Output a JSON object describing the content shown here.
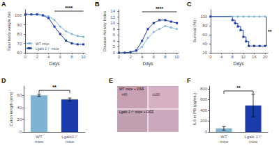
{
  "chart_data": [
    {
      "type": "line",
      "title": "A",
      "xlabel": "Days",
      "ylabel": "Total body weight (%)",
      "x": [
        0,
        1,
        2,
        3,
        4,
        5,
        6,
        7,
        8,
        9,
        10
      ],
      "series": [
        {
          "name": "WT mice",
          "color": "#7fb3d3",
          "marker": "circle",
          "values": [
            101,
            101,
            101,
            100,
            99,
            95,
            88,
            83,
            80,
            78,
            77
          ]
        },
        {
          "name": "Lgals 1⁻/⁻ mice",
          "color": "#1c3baa",
          "marker": "square",
          "values": [
            101,
            101,
            101,
            100,
            97,
            88,
            80,
            73,
            70,
            69,
            69
          ]
        }
      ],
      "xlim": [
        -0.3,
        10.3
      ],
      "ylim": [
        60,
        106
      ],
      "xticks": [
        0,
        2,
        4,
        6,
        8,
        10
      ],
      "yticks": [
        60,
        70,
        80,
        90,
        100
      ],
      "grid": false,
      "legend": "lower left",
      "annotations": [
        {
          "text": "****",
          "x1": 5,
          "x2": 10,
          "y": 104.5
        }
      ]
    },
    {
      "type": "line",
      "title": "B",
      "xlabel": "Days",
      "ylabel": "Disease Activity Index",
      "x": [
        0,
        1,
        2,
        3,
        4,
        5,
        6,
        7,
        8,
        9,
        10
      ],
      "series": [
        {
          "color": "#7fb3d3",
          "marker": "circle",
          "values": [
            0,
            0,
            0.2,
            0.5,
            2.0,
            5.0,
            7.0,
            8.0,
            9.0,
            8.5,
            8.0
          ]
        },
        {
          "color": "#1c3baa",
          "marker": "square",
          "values": [
            0,
            0,
            0.2,
            0.8,
            4.0,
            8.0,
            10.0,
            11.0,
            11.0,
            10.5,
            10.0
          ]
        }
      ],
      "xlim": [
        -0.3,
        10.3
      ],
      "ylim": [
        0,
        14.5
      ],
      "xticks": [
        0,
        2,
        4,
        6,
        8,
        10
      ],
      "yticks": [
        0,
        2,
        4,
        6,
        8,
        10,
        12,
        14
      ],
      "grid": false,
      "annotations": [
        {
          "text": "****",
          "x1": 4,
          "x2": 10,
          "y": 13.8
        }
      ]
    },
    {
      "type": "line",
      "title": "C",
      "xlabel": "Days",
      "ylabel": "Survival (%)",
      "series": [
        {
          "type": "line",
          "color": "#7fb3d3",
          "marker": "circle",
          "x": [
            0,
            8,
            10,
            12,
            14,
            16,
            18,
            20
          ],
          "values": [
            100,
            100,
            100,
            100,
            100,
            100,
            100,
            100
          ]
        },
        {
          "type": "step",
          "color": "#1c3baa",
          "marker": "square",
          "x": [
            0,
            8,
            9,
            10,
            11,
            12,
            13,
            14,
            16,
            18,
            20
          ],
          "values": [
            100,
            92,
            85,
            78,
            70,
            55,
            45,
            35,
            35,
            35,
            35
          ]
        }
      ],
      "xlim": [
        -0.5,
        21
      ],
      "ylim": [
        20,
        115
      ],
      "xticks": [
        0,
        4,
        8,
        12,
        16,
        20
      ],
      "yticks": [
        20,
        40,
        60,
        80,
        100
      ],
      "grid": false,
      "annotations": [
        {
          "text": "**",
          "x": 20.5,
          "y1": 35,
          "y2": 100
        }
      ]
    },
    {
      "type": "bar",
      "title": "D",
      "ylabel": "Colon length (mm)",
      "categories": [
        "WT\nmice",
        "Lgals1⁻/⁻\nmice"
      ],
      "values": [
        60,
        53
      ],
      "errors": [
        2.0,
        2.5
      ],
      "colors": [
        "#7fb3d3",
        "#1c3baa"
      ],
      "ylim": [
        0,
        75
      ],
      "yticks": [
        0,
        20,
        40,
        60
      ],
      "grid": false,
      "annotations": [
        {
          "text": "**",
          "y": 68
        }
      ]
    },
    {
      "type": "image",
      "title": "E",
      "colors": [
        "#c8a0b4",
        "#d8b0c4",
        "#c0a0b0",
        "#cca8bc"
      ],
      "annotations": [
        {
          "text": "WT mice + DSS"
        },
        {
          "text": "Lgals 1⁻/⁻ mice + DSS"
        },
        {
          "text": "x40"
        },
        {
          "text": "x100"
        }
      ]
    },
    {
      "type": "bar",
      "title": "F",
      "ylabel": "IL6 in PB (pg/mL)",
      "categories": [
        "WT\nmice",
        "Lgals 1⁻/⁻\nmice"
      ],
      "values": [
        65,
        490
      ],
      "errors": [
        35,
        210
      ],
      "colors": [
        "#7fb3d3",
        "#1c3baa"
      ],
      "ylim": [
        0,
        850
      ],
      "yticks": [
        0,
        200,
        400,
        600,
        800
      ],
      "grid": false,
      "annotations": [
        {
          "text": "**",
          "y": 760
        }
      ]
    }
  ]
}
